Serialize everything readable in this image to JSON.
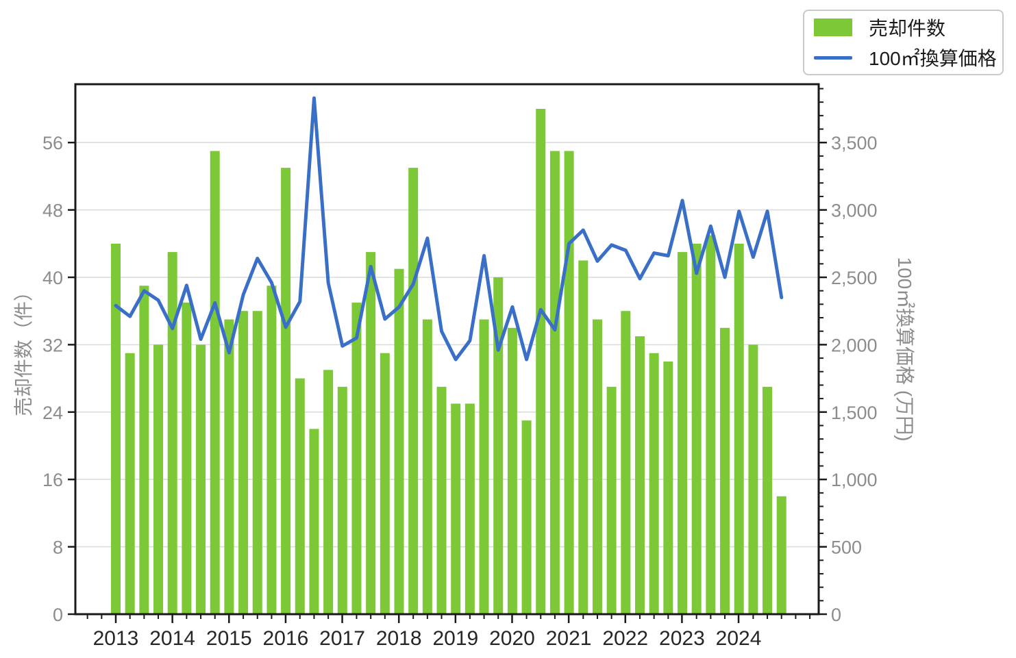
{
  "legend": {
    "bars_label": "売却件数",
    "line_label": "100㎡換算価格"
  },
  "axes": {
    "left_label": "売却件数（件）",
    "right_label": "100㎡換算価格 (万円)",
    "left_ticks": [
      0,
      8,
      16,
      24,
      32,
      40,
      48,
      56
    ],
    "right_tick_labels": [
      "0",
      "500",
      "1,000",
      "1,500",
      "2,000",
      "2,500",
      "3,000",
      "3,500"
    ],
    "right_tick_values": [
      0,
      500,
      1000,
      1500,
      2000,
      2500,
      3000,
      3500
    ],
    "x_tick_labels": [
      "2013",
      "2014",
      "2015",
      "2016",
      "2017",
      "2018",
      "2019",
      "2020",
      "2021",
      "2022",
      "2023",
      "2024"
    ]
  },
  "colors": {
    "bar": "#7dc837",
    "line": "#3a6fc8",
    "grid": "#dcdcdc",
    "spine": "#1a1a1a",
    "tick_label": "#8c8c8c",
    "x_tick_label": "#262626",
    "legend_border": "#c9c9c9"
  },
  "chart_data": {
    "type": "bar+line",
    "categories": [
      "2013Q1",
      "2013Q2",
      "2013Q3",
      "2013Q4",
      "2014Q1",
      "2014Q2",
      "2014Q3",
      "2014Q4",
      "2015Q1",
      "2015Q2",
      "2015Q3",
      "2015Q4",
      "2016Q1",
      "2016Q2",
      "2016Q3",
      "2016Q4",
      "2017Q1",
      "2017Q2",
      "2017Q3",
      "2017Q4",
      "2018Q1",
      "2018Q2",
      "2018Q3",
      "2018Q4",
      "2019Q1",
      "2019Q2",
      "2019Q3",
      "2019Q4",
      "2020Q1",
      "2020Q2",
      "2020Q3",
      "2020Q4",
      "2021Q1",
      "2021Q2",
      "2021Q3",
      "2021Q4",
      "2022Q1",
      "2022Q2",
      "2022Q3",
      "2022Q4",
      "2023Q1",
      "2023Q2",
      "2023Q3",
      "2023Q4",
      "2024Q1",
      "2024Q2",
      "2024Q3",
      "2024Q4"
    ],
    "series": [
      {
        "name": "売却件数",
        "type": "bar",
        "axis": "left",
        "values": [
          44,
          31,
          39,
          32,
          43,
          37,
          32,
          55,
          35,
          36,
          36,
          39,
          53,
          28,
          22,
          29,
          27,
          37,
          43,
          31,
          41,
          53,
          35,
          27,
          25,
          25,
          35,
          40,
          34,
          23,
          60,
          55,
          55,
          42,
          35,
          27,
          36,
          33,
          31,
          30,
          43,
          44,
          45,
          34,
          44,
          32,
          27,
          14
        ]
      },
      {
        "name": "100㎡換算価格",
        "type": "line",
        "axis": "right",
        "values": [
          2290,
          2210,
          2400,
          2330,
          2120,
          2440,
          2040,
          2310,
          1940,
          2370,
          2640,
          2460,
          2130,
          2320,
          3830,
          2460,
          1990,
          2050,
          2580,
          2190,
          2280,
          2450,
          2790,
          2100,
          1890,
          2030,
          2660,
          1960,
          2280,
          1890,
          2260,
          2110,
          2750,
          2850,
          2620,
          2740,
          2700,
          2490,
          2680,
          2660,
          3070,
          2530,
          2880,
          2500,
          2990,
          2650,
          2990,
          2350
        ]
      }
    ],
    "title": "",
    "xlabel": "",
    "ylabel_left": "売却件数（件）",
    "ylabel_right": "100㎡換算価格 (万円)",
    "ylim_left": [
      0,
      63
    ],
    "ylim_right": [
      0,
      3935
    ],
    "grid": "horizontal",
    "legend_position": "top-right"
  }
}
